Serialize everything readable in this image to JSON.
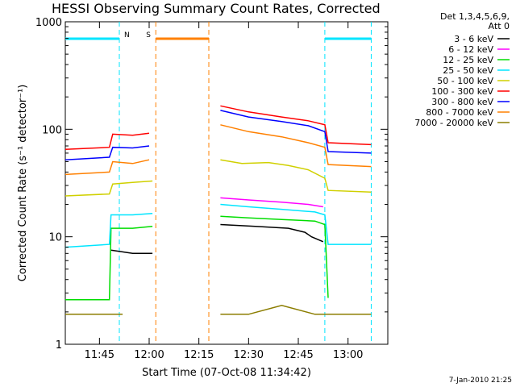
{
  "chart_data": {
    "type": "line",
    "title": "HESSI Observing Summary Count Rates, Corrected",
    "xlabel": "Start Time (07-Oct-08 11:34:42)",
    "ylabel": "Corrected Count Rate (s⁻¹ detector⁻¹)",
    "yscale": "log",
    "ylim": [
      1,
      1000
    ],
    "xlim": [
      "11:34:42",
      "13:12:00"
    ],
    "x_ticks": [
      "11:45",
      "12:00",
      "12:15",
      "12:30",
      "12:45",
      "13:00"
    ],
    "y_ticks": [
      "1",
      "10",
      "100",
      "1000"
    ],
    "legend_header": [
      "Det 1,3,4,5,6,9,",
      "Att 0"
    ],
    "legend_position": "right, outside plot",
    "footer_date": "7-Jan-2010 21:25",
    "series": [
      {
        "name": "3 - 6 keV",
        "color": "#000000",
        "x": [
          "11:34:42",
          "11:48:00",
          "11:48:30",
          "11:55:00",
          "12:01:00",
          "12:20:00",
          "12:21:30",
          "12:32:00",
          "12:42:00",
          "12:47:00",
          "12:49:00",
          "12:52:30",
          "12:54:00"
        ],
        "y": [
          null,
          null,
          7.5,
          7,
          7,
          null,
          13,
          12.5,
          12,
          11,
          10,
          9,
          null
        ]
      },
      {
        "name": "6 - 12 keV",
        "color": "#ff00ff",
        "x": [
          "11:34:42",
          "11:52:00",
          "12:01:00",
          "12:20:00",
          "12:21:30",
          "12:30:00",
          "12:40:00",
          "12:48:00",
          "12:52:30",
          "12:54:00"
        ],
        "y": [
          null,
          null,
          null,
          null,
          23,
          22,
          21,
          20,
          19,
          null
        ]
      },
      {
        "name": "12 - 25 keV",
        "color": "#00dd00",
        "x": [
          "11:34:42",
          "11:48:00",
          "11:48:30",
          "11:55:00",
          "12:01:00",
          "12:20:00",
          "12:21:30",
          "12:30:00",
          "12:40:00",
          "12:50:00",
          "12:53:00",
          "12:54:00"
        ],
        "y": [
          2.6,
          2.6,
          12,
          12,
          12.5,
          null,
          15.5,
          15,
          14.5,
          14,
          13,
          2.7
        ]
      },
      {
        "name": "25 - 50 keV",
        "color": "#00e5ff",
        "x": [
          "11:34:42",
          "11:48:00",
          "11:48:30",
          "11:55:00",
          "12:01:00",
          "12:20:00",
          "12:21:30",
          "12:30:00",
          "12:40:00",
          "12:50:00",
          "12:53:00",
          "12:54:00",
          "13:07:00"
        ],
        "y": [
          8,
          8.5,
          16,
          16,
          16.5,
          null,
          20,
          19,
          18,
          17,
          16,
          8.5,
          8.5
        ]
      },
      {
        "name": "50 - 100 keV",
        "color": "#d0d000",
        "x": [
          "11:34:42",
          "11:48:00",
          "11:49:00",
          "11:55:00",
          "12:01:00",
          "12:20:00",
          "12:21:30",
          "12:28:00",
          "12:36:00",
          "12:42:00",
          "12:48:00",
          "12:53:00",
          "12:54:00",
          "13:07:00"
        ],
        "y": [
          24,
          25,
          31,
          32,
          33,
          null,
          52,
          48,
          49,
          46,
          42,
          35,
          27,
          26
        ]
      },
      {
        "name": "100 - 300 keV",
        "color": "#ff0000",
        "x": [
          "11:34:42",
          "11:48:00",
          "11:49:00",
          "11:55:00",
          "12:00:00",
          "12:20:00",
          "12:21:30",
          "12:30:00",
          "12:40:00",
          "12:48:00",
          "12:53:00",
          "12:54:00",
          "13:07:00"
        ],
        "y": [
          65,
          68,
          90,
          88,
          92,
          null,
          165,
          145,
          130,
          120,
          110,
          75,
          72
        ]
      },
      {
        "name": "300 - 800 keV",
        "color": "#0000ff",
        "x": [
          "11:34:42",
          "11:48:00",
          "11:49:00",
          "11:55:00",
          "12:00:00",
          "12:20:00",
          "12:21:30",
          "12:30:00",
          "12:40:00",
          "12:48:00",
          "12:53:00",
          "12:54:00",
          "13:07:00"
        ],
        "y": [
          52,
          55,
          68,
          67,
          70,
          null,
          150,
          130,
          118,
          108,
          95,
          62,
          60
        ]
      },
      {
        "name": "800 - 7000 keV",
        "color": "#ff8000",
        "x": [
          "11:34:42",
          "11:48:00",
          "11:49:00",
          "11:55:00",
          "12:00:00",
          "12:20:00",
          "12:21:30",
          "12:30:00",
          "12:40:00",
          "12:48:00",
          "12:53:00",
          "12:54:00",
          "13:07:00"
        ],
        "y": [
          38,
          40,
          50,
          48,
          52,
          null,
          110,
          95,
          85,
          75,
          68,
          47,
          45
        ]
      },
      {
        "name": "7000 - 20000 keV",
        "color": "#8b7d00",
        "x": [
          "11:34:42",
          "11:52:00",
          "12:01:00",
          "12:20:00",
          "12:21:30",
          "12:30:00",
          "12:40:00",
          "12:50:00",
          "13:07:00"
        ],
        "y": [
          1.9,
          1.9,
          null,
          null,
          1.9,
          1.9,
          2.3,
          1.9,
          1.9
        ]
      }
    ],
    "flag_bars": [
      {
        "label": "N",
        "color": "#00e5ff",
        "segments": [
          [
            "11:34:42",
            "11:51:00"
          ],
          [
            "12:53:00",
            "13:07:00"
          ]
        ]
      },
      {
        "label": "S",
        "color": "#ff8000",
        "segments": [
          [
            "12:02:00",
            "12:18:00"
          ]
        ]
      }
    ]
  }
}
